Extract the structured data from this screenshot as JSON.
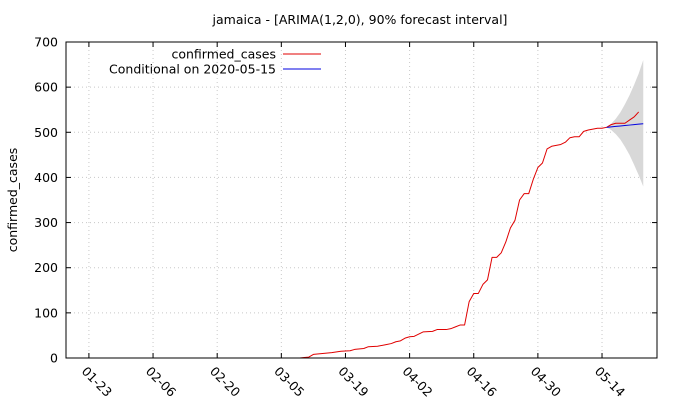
{
  "chart_data": {
    "type": "line",
    "title": "jamaica -  [ARIMA(1,2,0), 90% forecast interval]",
    "xlabel": "",
    "ylabel": "confirmed_cases",
    "xlim": [
      "2020-01-18",
      "2020-05-26"
    ],
    "ylim": [
      0,
      700
    ],
    "y_ticks": [
      0,
      100,
      200,
      300,
      400,
      500,
      600,
      700
    ],
    "x_ticks": [
      {
        "date": "2020-01-23",
        "label": "01-23"
      },
      {
        "date": "2020-02-06",
        "label": "02-06"
      },
      {
        "date": "2020-02-20",
        "label": "02-20"
      },
      {
        "date": "2020-03-05",
        "label": "03-05"
      },
      {
        "date": "2020-03-19",
        "label": "03-19"
      },
      {
        "date": "2020-04-02",
        "label": "04-02"
      },
      {
        "date": "2020-04-16",
        "label": "04-16"
      },
      {
        "date": "2020-04-30",
        "label": "04-30"
      },
      {
        "date": "2020-05-14",
        "label": "05-14"
      }
    ],
    "grid": true,
    "legend_position": "top-left",
    "colors": {
      "observed": "#e00000",
      "forecast": "#0000e0",
      "interval": "#d8d8d8"
    },
    "series": [
      {
        "name": "confirmed_cases",
        "points": [
          [
            "2020-01-22",
            0
          ],
          [
            "2020-03-09",
            0
          ],
          [
            "2020-03-10",
            1
          ],
          [
            "2020-03-11",
            2
          ],
          [
            "2020-03-12",
            8
          ],
          [
            "2020-03-14",
            10
          ],
          [
            "2020-03-16",
            12
          ],
          [
            "2020-03-18",
            15
          ],
          [
            "2020-03-20",
            16
          ],
          [
            "2020-03-21",
            19
          ],
          [
            "2020-03-23",
            21
          ],
          [
            "2020-03-24",
            25
          ],
          [
            "2020-03-26",
            26
          ],
          [
            "2020-03-28",
            30
          ],
          [
            "2020-03-29",
            32
          ],
          [
            "2020-03-30",
            36
          ],
          [
            "2020-03-31",
            38
          ],
          [
            "2020-04-01",
            44
          ],
          [
            "2020-04-02",
            47
          ],
          [
            "2020-04-03",
            48
          ],
          [
            "2020-04-04",
            53
          ],
          [
            "2020-04-05",
            58
          ],
          [
            "2020-04-07",
            59
          ],
          [
            "2020-04-08",
            63
          ],
          [
            "2020-04-10",
            63
          ],
          [
            "2020-04-11",
            65
          ],
          [
            "2020-04-12",
            69
          ],
          [
            "2020-04-13",
            73
          ],
          [
            "2020-04-14",
            73
          ],
          [
            "2020-04-15",
            125
          ],
          [
            "2020-04-16",
            143
          ],
          [
            "2020-04-17",
            143
          ],
          [
            "2020-04-18",
            163
          ],
          [
            "2020-04-19",
            173
          ],
          [
            "2020-04-20",
            223
          ],
          [
            "2020-04-21",
            223
          ],
          [
            "2020-04-22",
            233
          ],
          [
            "2020-04-23",
            257
          ],
          [
            "2020-04-24",
            288
          ],
          [
            "2020-04-25",
            305
          ],
          [
            "2020-04-26",
            350
          ],
          [
            "2020-04-27",
            364
          ],
          [
            "2020-04-28",
            364
          ],
          [
            "2020-04-29",
            396
          ],
          [
            "2020-04-30",
            422
          ],
          [
            "2020-05-01",
            432
          ],
          [
            "2020-05-02",
            463
          ],
          [
            "2020-05-03",
            469
          ],
          [
            "2020-05-04",
            471
          ],
          [
            "2020-05-05",
            473
          ],
          [
            "2020-05-06",
            478
          ],
          [
            "2020-05-07",
            488
          ],
          [
            "2020-05-08",
            490
          ],
          [
            "2020-05-09",
            490
          ],
          [
            "2020-05-10",
            502
          ],
          [
            "2020-05-11",
            505
          ],
          [
            "2020-05-12",
            507
          ],
          [
            "2020-05-13",
            509
          ],
          [
            "2020-05-14",
            509
          ],
          [
            "2020-05-15",
            511
          ],
          [
            "2020-05-16",
            517
          ],
          [
            "2020-05-17",
            520
          ],
          [
            "2020-05-18",
            520
          ],
          [
            "2020-05-19",
            520
          ],
          [
            "2020-05-20",
            527
          ],
          [
            "2020-05-21",
            534
          ],
          [
            "2020-05-22",
            545
          ]
        ]
      },
      {
        "name": "Conditional on 2020-05-15",
        "points": [
          [
            "2020-05-15",
            511
          ],
          [
            "2020-05-16",
            512
          ],
          [
            "2020-05-17",
            513
          ],
          [
            "2020-05-18",
            514
          ],
          [
            "2020-05-19",
            515
          ],
          [
            "2020-05-20",
            516
          ],
          [
            "2020-05-21",
            517
          ],
          [
            "2020-05-22",
            518
          ],
          [
            "2020-05-23",
            519
          ]
        ]
      }
    ],
    "forecast_interval": {
      "lower": [
        [
          "2020-05-15",
          511
        ],
        [
          "2020-05-16",
          505
        ],
        [
          "2020-05-17",
          496
        ],
        [
          "2020-05-18",
          484
        ],
        [
          "2020-05-19",
          468
        ],
        [
          "2020-05-20",
          450
        ],
        [
          "2020-05-21",
          428
        ],
        [
          "2020-05-22",
          405
        ],
        [
          "2020-05-23",
          380
        ]
      ],
      "upper": [
        [
          "2020-05-15",
          511
        ],
        [
          "2020-05-16",
          519
        ],
        [
          "2020-05-17",
          530
        ],
        [
          "2020-05-18",
          544
        ],
        [
          "2020-05-19",
          562
        ],
        [
          "2020-05-20",
          582
        ],
        [
          "2020-05-21",
          605
        ],
        [
          "2020-05-22",
          630
        ],
        [
          "2020-05-23",
          660
        ]
      ]
    }
  }
}
